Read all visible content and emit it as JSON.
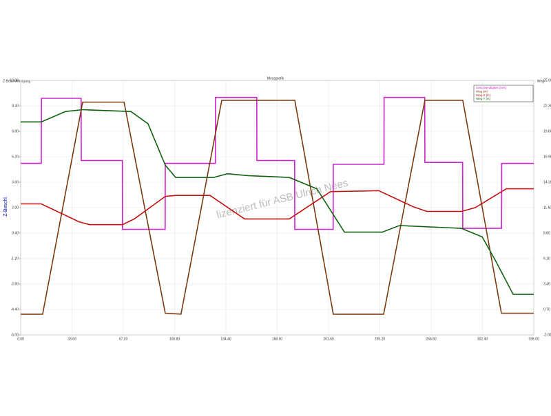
{
  "chart_data": {
    "type": "line",
    "title": "Messgrafik",
    "y_label": "Z-Beschl.",
    "y_axis_title": "Z-Beschleunigung",
    "y2_axis_title": "Weg",
    "watermark": "lizenziert für ASB Ulrich Nees",
    "grid": true,
    "legend": "top-right",
    "xlim": [
      0,
      336
    ],
    "xticks": [
      {
        "value": 0,
        "label": "0.00"
      },
      {
        "value": 33.6,
        "label": "33.60"
      },
      {
        "value": 67.2,
        "label": "67.20"
      },
      {
        "value": 100.8,
        "label": "100.80"
      },
      {
        "value": 134.4,
        "label": "134.40"
      },
      {
        "value": 168,
        "label": "168.00"
      },
      {
        "value": 201.6,
        "label": "201.60"
      },
      {
        "value": 235.2,
        "label": "235.20"
      },
      {
        "value": 268.8,
        "label": "268.80"
      },
      {
        "value": 302.4,
        "label": "302.40"
      },
      {
        "value": 336,
        "label": "336.00"
      }
    ],
    "ylim": [
      -6,
      10
    ],
    "yticks": [
      {
        "value": 10,
        "label": "10.00"
      },
      {
        "value": 8.4,
        "label": "8.40"
      },
      {
        "value": 6.8,
        "label": "6.80"
      },
      {
        "value": 5.2,
        "label": "5.20"
      },
      {
        "value": 3.6,
        "label": "3.60"
      },
      {
        "value": 2,
        "label": "2.00"
      },
      {
        "value": 0.4,
        "label": "0.40"
      },
      {
        "value": -1.2,
        "label": "-1.20"
      },
      {
        "value": -2.8,
        "label": "-2.80"
      },
      {
        "value": -4.4,
        "label": "-4.40"
      },
      {
        "value": -6,
        "label": "-6.00"
      }
    ],
    "y2lim": [
      -2,
      25
    ],
    "y2ticks": [
      {
        "value": 25,
        "label": "25.00"
      },
      {
        "value": 22.3,
        "label": "22.30"
      },
      {
        "value": 19.6,
        "label": "19.60"
      },
      {
        "value": 16.9,
        "label": "16.90"
      },
      {
        "value": 14.2,
        "label": "14.20"
      },
      {
        "value": 11.5,
        "label": "11.50"
      },
      {
        "value": 8.8,
        "label": "8.80"
      },
      {
        "value": 6.1,
        "label": "6.10"
      },
      {
        "value": 3.4,
        "label": "3.40"
      },
      {
        "value": 0.7,
        "label": "0.70"
      },
      {
        "value": -2,
        "label": "-2.00"
      }
    ],
    "series": [
      {
        "name": "Geschwindigkeit [m/s]",
        "color": "#d020d0",
        "axis": "y2",
        "x": [
          0,
          13.5,
          13.6,
          39.6,
          39.7,
          66.6,
          66.7,
          94.6,
          94.7,
          127.5,
          127.6,
          154.6,
          154.7,
          179.4,
          179.5,
          204.6,
          204.7,
          237.9,
          238,
          264.6,
          264.7,
          289.4,
          289.5,
          314.9,
          315,
          336
        ],
        "values": [
          16.2,
          16.2,
          23.1,
          23.1,
          16.5,
          16.5,
          9.2,
          9.2,
          16.2,
          16.2,
          23.2,
          23.2,
          16.5,
          16.5,
          9.2,
          9.2,
          16.1,
          16.1,
          23.2,
          23.2,
          16.3,
          16.3,
          9.3,
          9.3,
          16.2,
          16.2
        ]
      },
      {
        "name": "Weg [m]",
        "color": "#7a3a10",
        "axis": "y2",
        "x": [
          0,
          14.4,
          40.6,
          67.7,
          94.7,
          105,
          131.7,
          179.5,
          204.7,
          237.7,
          264.7,
          289.5,
          314.8,
          336
        ],
        "values": [
          0.2,
          0.2,
          22.7,
          22.7,
          0.3,
          0.2,
          22.9,
          22.9,
          0.2,
          0.2,
          22.9,
          22.9,
          0.3,
          0.3
        ]
      },
      {
        "name": "Weg X [m]",
        "color": "#c01010",
        "axis": "y2",
        "x": [
          0,
          13.5,
          38.3,
          45.1,
          66.7,
          74.4,
          94.7,
          101.5,
          124,
          146.6,
          155.6,
          175.9,
          202.9,
          234.5,
          257,
          266,
          288.6,
          297.6,
          318,
          336
        ],
        "values": [
          11.9,
          11.9,
          10,
          9.7,
          9.7,
          10.3,
          12.7,
          12.8,
          12.8,
          10.3,
          10.3,
          10.3,
          13.2,
          13.3,
          11.6,
          11.1,
          11.1,
          11.5,
          13.5,
          13.5
        ]
      },
      {
        "name": "Weg Y [m]",
        "color": "#106010",
        "axis": "y2",
        "x": [
          0,
          13.5,
          29.3,
          40.6,
          72.2,
          83.4,
          94.7,
          101.5,
          126.3,
          135.3,
          148.8,
          175.9,
          194,
          212,
          236.8,
          248,
          288.6,
          302.2,
          311.2,
          322.5,
          336
        ],
        "values": [
          20.6,
          20.6,
          21.7,
          21.9,
          21.7,
          20.4,
          16,
          14.7,
          14.7,
          15.1,
          14.9,
          14.7,
          13.5,
          8.9,
          8.9,
          9.6,
          9.3,
          8.4,
          5.8,
          2.3,
          2.3
        ]
      }
    ]
  }
}
